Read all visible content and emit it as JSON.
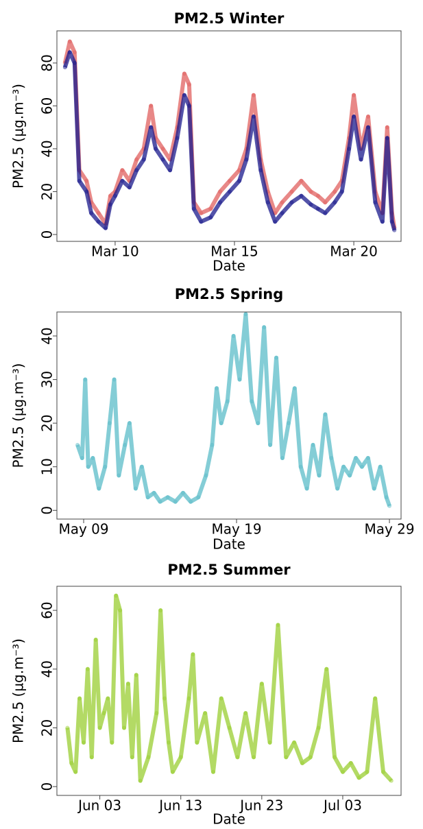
{
  "chart_data": [
    {
      "type": "line",
      "title": "PM2.5 Winter",
      "x_label": "Date",
      "y_label": "PM2.5 (µg.m⁻³)",
      "xlim": [
        7.56,
        21.98
      ],
      "ylim": [
        -3.2,
        95
      ],
      "xticks": [
        {
          "value": 10,
          "label": "Mar 10"
        },
        {
          "value": 15,
          "label": "Mar 15"
        },
        {
          "value": 20,
          "label": "Mar 20"
        }
      ],
      "yticks": [
        0,
        20,
        40,
        60,
        80
      ],
      "x": [
        7.9,
        8.1,
        8.3,
        8.5,
        8.8,
        9.0,
        9.3,
        9.6,
        9.8,
        10.0,
        10.3,
        10.6,
        10.9,
        11.2,
        11.5,
        11.7,
        12.0,
        12.3,
        12.6,
        12.9,
        13.1,
        13.3,
        13.6,
        14.0,
        14.4,
        14.8,
        15.2,
        15.5,
        15.8,
        16.1,
        16.4,
        16.7,
        17.0,
        17.4,
        17.8,
        18.2,
        18.5,
        18.8,
        19.2,
        19.5,
        19.8,
        20.0,
        20.3,
        20.6,
        20.9,
        21.2,
        21.4,
        21.6,
        21.7
      ],
      "series": [
        {
          "color": "#e0605f",
          "values": [
            80,
            90,
            85,
            30,
            25,
            15,
            10,
            5,
            18,
            20,
            30,
            25,
            35,
            40,
            60,
            45,
            40,
            35,
            50,
            75,
            70,
            15,
            10,
            12,
            20,
            25,
            30,
            40,
            65,
            35,
            20,
            10,
            15,
            20,
            25,
            20,
            18,
            15,
            20,
            25,
            45,
            65,
            40,
            55,
            20,
            10,
            50,
            10,
            3
          ]
        },
        {
          "color": "#1a1a8c",
          "values": [
            78,
            85,
            80,
            25,
            20,
            10,
            6,
            3,
            14,
            18,
            25,
            22,
            30,
            35,
            50,
            40,
            35,
            30,
            45,
            65,
            60,
            12,
            6,
            8,
            15,
            20,
            25,
            35,
            55,
            30,
            15,
            6,
            10,
            15,
            18,
            14,
            12,
            10,
            15,
            20,
            40,
            55,
            35,
            50,
            15,
            6,
            45,
            6,
            2
          ]
        }
      ]
    },
    {
      "type": "line",
      "title": "PM2.5 Spring",
      "x_label": "Date",
      "y_label": "PM2.5 (µg.m⁻³)",
      "xlim": [
        7.25,
        29.76
      ],
      "ylim": [
        -2,
        45.5
      ],
      "xticks": [
        {
          "value": 9,
          "label": "May 09"
        },
        {
          "value": 19,
          "label": "May 19"
        },
        {
          "value": 29,
          "label": "May 29"
        }
      ],
      "yticks": [
        0,
        10,
        20,
        30,
        40
      ],
      "x": [
        8.6,
        8.9,
        9.1,
        9.3,
        9.6,
        10.0,
        10.4,
        10.7,
        11.0,
        11.3,
        11.7,
        12.0,
        12.4,
        12.8,
        13.2,
        13.6,
        14.0,
        14.5,
        15.0,
        15.5,
        16.0,
        16.5,
        17.0,
        17.4,
        17.7,
        18.0,
        18.4,
        18.8,
        19.2,
        19.6,
        20.0,
        20.4,
        20.8,
        21.2,
        21.6,
        22.0,
        22.4,
        22.8,
        23.2,
        23.6,
        24.0,
        24.4,
        24.8,
        25.2,
        25.6,
        26.0,
        26.4,
        26.8,
        27.2,
        27.6,
        28.0,
        28.4,
        28.8,
        29.0
      ],
      "series": [
        {
          "color": "#5bbcc8",
          "values": [
            15,
            12,
            30,
            10,
            12,
            5,
            10,
            20,
            30,
            8,
            15,
            20,
            5,
            10,
            3,
            4,
            2,
            3,
            2,
            4,
            2,
            3,
            8,
            15,
            28,
            20,
            25,
            40,
            30,
            45,
            25,
            20,
            42,
            15,
            35,
            12,
            20,
            28,
            10,
            5,
            15,
            8,
            22,
            12,
            5,
            10,
            8,
            12,
            10,
            12,
            5,
            10,
            3,
            1
          ]
        }
      ]
    },
    {
      "type": "line",
      "title": "PM2.5 Summer",
      "x_label": "Date",
      "y_label": "PM2.5 (µg.m⁻³)",
      "xlim": [
        -2.3,
        40.2
      ],
      "ylim": [
        -3,
        68.2
      ],
      "xticks": [
        {
          "value": 3,
          "label": "Jun 03"
        },
        {
          "value": 13,
          "label": "Jun 13"
        },
        {
          "value": 23,
          "label": "Jun 23"
        },
        {
          "value": 33,
          "label": "Jul 03"
        }
      ],
      "yticks": [
        0,
        20,
        40,
        60
      ],
      "x": [
        -1,
        -0.5,
        0,
        0.5,
        1,
        1.5,
        2,
        2.5,
        3,
        3.5,
        4,
        4.5,
        5,
        5.5,
        6,
        6.5,
        7,
        7.5,
        8,
        9,
        10,
        10.5,
        11,
        11.5,
        12,
        13,
        14,
        14.5,
        15,
        16,
        17,
        18,
        19,
        20,
        21,
        22,
        23,
        24,
        25,
        26,
        27,
        28,
        29,
        30,
        31,
        32,
        33,
        34,
        35,
        36,
        37,
        38,
        39
      ],
      "series": [
        {
          "color": "#9acd32",
          "values": [
            20,
            8,
            5,
            30,
            15,
            40,
            10,
            50,
            20,
            25,
            30,
            15,
            65,
            60,
            20,
            35,
            10,
            38,
            2,
            10,
            25,
            60,
            30,
            15,
            5,
            10,
            30,
            45,
            15,
            25,
            5,
            30,
            20,
            10,
            25,
            10,
            35,
            15,
            55,
            10,
            15,
            8,
            10,
            20,
            40,
            10,
            5,
            8,
            3,
            5,
            30,
            5,
            2
          ]
        }
      ]
    }
  ]
}
